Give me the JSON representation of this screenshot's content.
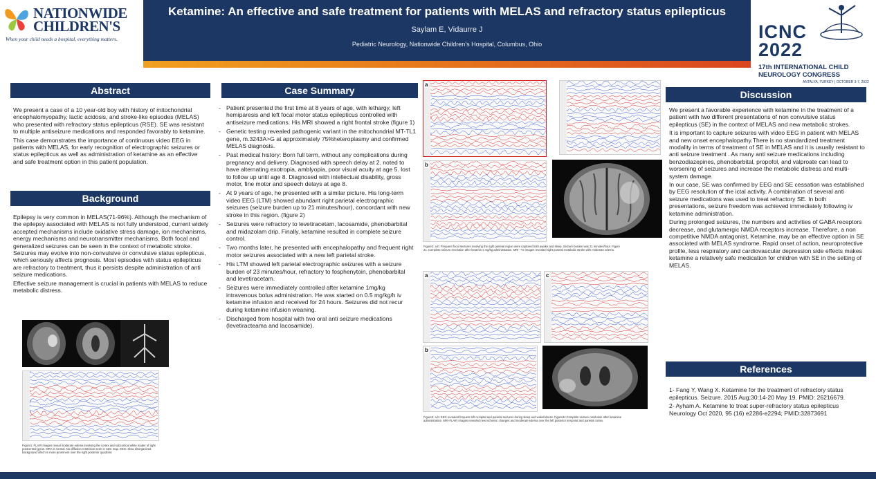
{
  "header": {
    "title": "Ketamine: An effective and safe treatment for patients with MELAS and refractory status epilepticus",
    "authors": "Saylam E, Vidaurre J",
    "affiliation": "Pediatric Neurology, Nationwide Children’s Hospital, Columbus, Ohio"
  },
  "logo_left": {
    "name_line1": "NATIONWIDE",
    "name_line2": "CHILDREN'S",
    "tagline": "When your child needs a hospital, everything matters."
  },
  "logo_right": {
    "line1": "ICNC",
    "line2": "2022",
    "sub1": "17th INTERNATIONAL CHILD",
    "sub2": "NEUROLOGY CONGRESS",
    "place": "ANTALYA, TURKEY | OCTOBER 3-7, 2022"
  },
  "abstract": {
    "heading": "Abstract",
    "p1": "We present a case of a 10 year-old boy with history of mitochondrial encephalomyopathy, lactic acidosis, and stroke-like episodes (MELAS) who presented with refractory status epilepticus (RSE). SE was resistant to multiple antiseizure medications and responded favorably to ketamine.",
    "p2": "This case demonstrates the importance of continuous video EEG in patients with MELAS, for early recognition of electrographic seizures or status epilepticus as well as administration of ketamine as an effective and safe treatment option in this patient population."
  },
  "background": {
    "heading": "Background",
    "p1": "Epilepsy is very common in MELAS(71-96%). Although  the mechanism of the epilepsy associated with MELAS is not fully understood, current widely accepted mechanisms include oxidative stress damage, ion mechanisms, energy mechanisms and neurotransmitter mechanisms. Both focal and generalized seizures can be seen in the context of metabolic stroke. Seizures may evolve into non-convulsive or convulsive status epilepticus, which seriously affects prognosis. Most episodes with status epilepticus are refractory to treatment, thus it persists despite administration of anti seizure medications.",
    "p2": "Effective seizure management is crucial in patients with MELAS to reduce metabolic distress."
  },
  "figure1": {
    "caption": "Figure1: FLAIR images reveal moderate edema involving the cortex and subcortical white matter of right postcentral gyrus. MRA is normal. No diffusion restriction seen in ADC map. EEG: Slow disorganized background which is more prominent over the right posterior quadrant."
  },
  "case_summary": {
    "heading": "Case Summary",
    "items": [
      "Patient presented the first time at 8 years of age, with lethargy, left hemiparesis and left focal motor status epilepticus controlled with antiseizure medications. His MRI showed a right frontal stroke (figure 1)",
      "Genetic testing revealed pathogenic variant in the mitochondrial MT-TL1 gene, m.3243A>G at approximately 75%heteroplasmy and confirmed MELAS diagnosis.",
      "Past medical history: Born full term, without any complications during pregnancy and delivery. Diagnosed with speech delay at 2. noted to have alternating exotropia, amblyopia, poor visual acuity at age 5. lost to follow up until age 8. Diagnosed with intellectual disability, gross motor, fine motor and speech delays at age 8.",
      " At 9 years of age, he presented with a similar picture. His long-term video EEG (LTM) showed abundant right parietal electrographic seizures (seizure burden up to 21 minutes/hour), concordant with new stroke in this region. (figure 2)",
      "Seizures were refractory to levetiracetam, lacosamide, phenobarbital and midazolam drip. Finally, ketamine resulted in complete seizure control.",
      "Two months later, he presented with encephalopathy and frequent right motor seizures associated with a new left parietal stroke.",
      " His LTM showed left parietal electrographic seizures with a seizure burden of 23 minutes/hour, refractory to fosphenytoin, phenobarbital and levetiracetam.",
      "Seizures were immediately controlled after ketamine 1mg/kg intravenous bolus administration. He was started on 0.5 mg/kg/h iv ketamine infusion and received for 24 hours. Seizures did not recur during ketamine infusion weaning.",
      "Discharged from hospital with two oral anti seizure medications (levetiracteama and lacosamide)."
    ]
  },
  "figure2": {
    "label_a": "a",
    "label_b": "b",
    "caption": "Figure2: a-b: Frequent focal seizures involving the right parietal region were captured both awake and sleep. Seizure burden was 21 minutes/hour. Figure 2c: Complete seizure resolution after ketamin 1 mg/kg administration. MRI –T2 images revealed right parietal metabolic stroke with moderate edema."
  },
  "figure3": {
    "label_a": "a",
    "label_b": "b",
    "label_c": "c",
    "caption": "Figure3: a-b: EEG revealed frequent left occipital and parietal seizures during sleep and wakefulness. Figure3c:Complete seizure resolution after ketamine administration. MRI-FLAIR images revealed new ischemic changes and moderate edema over the left posterior temporal and parietal cortex."
  },
  "discussion": {
    "heading": "Discussion",
    "p1": "We present a favorable experience with ketamine in the treatment of a patient with two different presentations of non convulsive status epilepticus (SE) in the context of MELAS and new metabolic strokes.",
    "p2": "It is important to capture seizures with video EEG in patient with MELAS and new onset encephalopathy.There is no standardized treatment modality in terms of treatment of SE in MELAS and it is usually resistant to anti seizure treatment .  As many anti seizure medications including benzodiazepines, phenobarbital, propofol, and valproate can lead to worsening of seizures and increase the metabolic distress and multi-system damage.",
    "p3": "In our case, SE was confirmed by EEG and SE cessation was established by EEG resolution of the ictal activity. A combination of several anti seizure medications was used to treat refractory SE. In both presentations, seizure freedom was achieved immediately following iv ketamine administration.",
    "p4": "During prolonged seizures, the numbers and activities of GABA receptors decrease, and glutamergic NMDA receptors increase. Therefore, a non competitive NMDA antagonist, Ketamine, may be an effective option in SE associated with MELAS syndrome.  Rapid onset of action, neuroprotective profile, less respiratory and cardiovascular depression side effects makes ketamine a relatively safe medication for children with SE in the setting of MELAS."
  },
  "references": {
    "heading": "References",
    "r1": "1- Fang Y, Wang X. Ketamine for the treatment of refractory status epilepticus. Seizure. 2015 Aug;30:14-20 May 19. PMID: 26216679.",
    "r2": "2- Ayham A. Ketamine to treat super-refractory status epilepticus Neurology Oct 2020, 95 (16) e2286-e2294; PMID:32873691"
  },
  "colors": {
    "navy": "#1c3764",
    "orange": "#e87e1b",
    "eeg_blue": "#2a4fd0",
    "eeg_red": "#d42020"
  }
}
